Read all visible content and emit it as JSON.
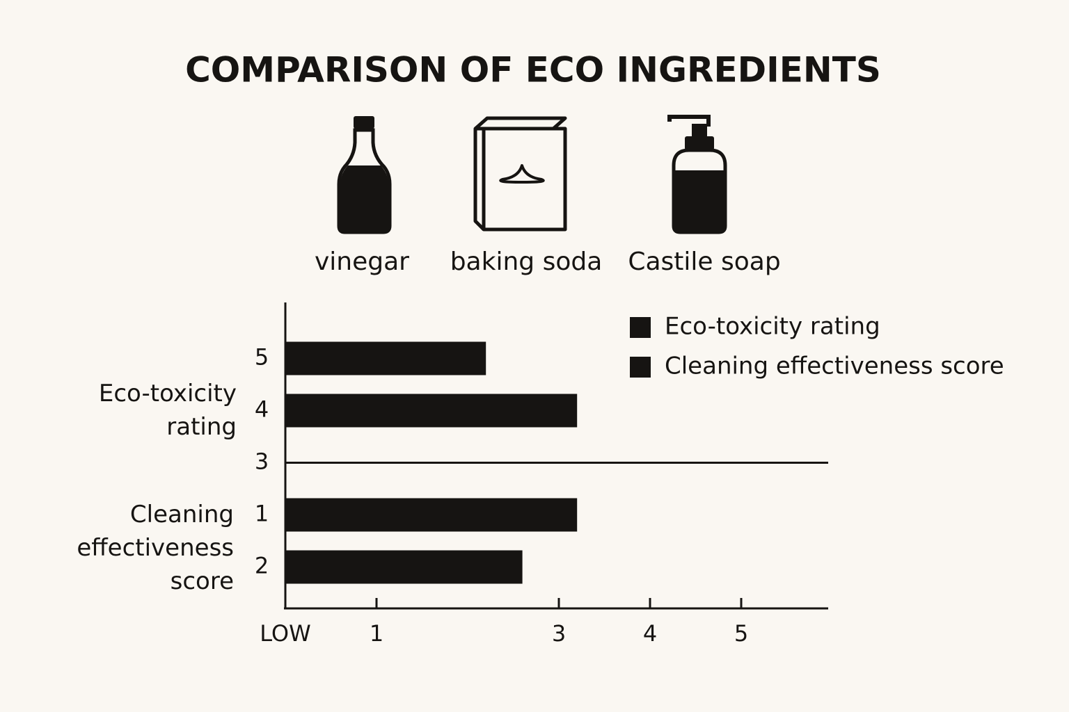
{
  "title": "COMPARISON OF ECO INGREDIENTS",
  "ingredients": [
    "vinegar",
    "baking soda",
    "Castile soap"
  ],
  "chart_data": {
    "type": "bar",
    "categories": [
      "5",
      "4",
      "3",
      "1",
      "2"
    ],
    "series": [
      {
        "name": "Eco-toxicity rating",
        "color": "#161412",
        "values": [
          2.2,
          3.2,
          null,
          null,
          null
        ]
      },
      {
        "name": "Cleaning effectiveness score",
        "color": "#161412",
        "values": [
          null,
          null,
          null,
          3.2,
          2.6
        ]
      }
    ],
    "xlim": [
      0,
      6
    ],
    "xticks": [
      {
        "value": 0,
        "label": "LOW"
      },
      1,
      3,
      4,
      5
    ],
    "legend": "top-right"
  }
}
